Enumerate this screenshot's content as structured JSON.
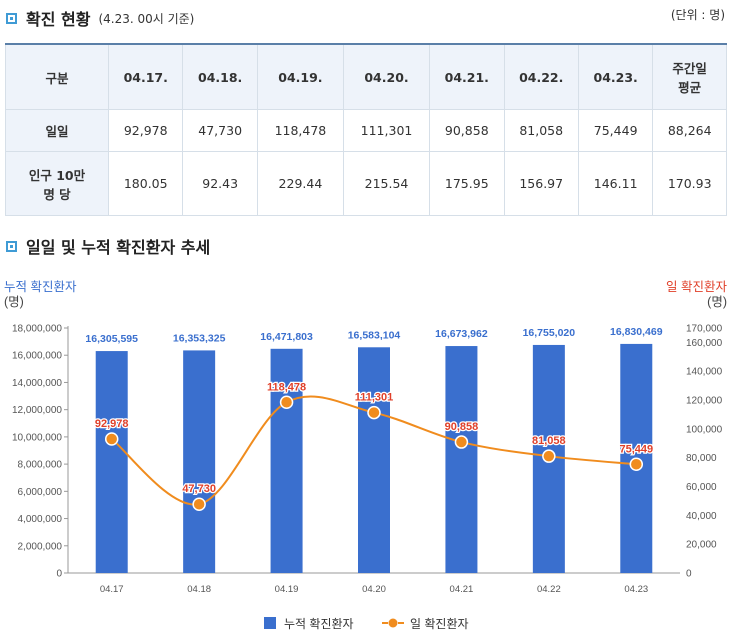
{
  "section1": {
    "title": "확진 현황",
    "subtitle": "(4.23. 00시 기준)",
    "unit": "(단위 : 명)"
  },
  "table": {
    "header": [
      "구분",
      "04.17.",
      "04.18.",
      "04.19.",
      "04.20.",
      "04.21.",
      "04.22.",
      "04.23.",
      "주간일\n평균"
    ],
    "rows": [
      {
        "label": "일일",
        "cells": [
          "92,978",
          "47,730",
          "118,478",
          "111,301",
          "90,858",
          "81,058",
          "75,449",
          "88,264"
        ]
      },
      {
        "label": "인구 10만\n명 당",
        "cells": [
          "180.05",
          "92.43",
          "229.44",
          "215.54",
          "175.95",
          "156.97",
          "146.11",
          "170.93"
        ]
      }
    ]
  },
  "section2": {
    "title": "일일 및 누적 확진환자 추세"
  },
  "colors": {
    "bar": "#3a6fce",
    "line": "#f08c1e",
    "bar_label": "#3a6fce",
    "line_label": "#e0402a",
    "left_axis_title": "#3a6fce",
    "right_axis_title": "#e0402a"
  },
  "chart_data": {
    "type": "bar+line",
    "categories": [
      "04.17",
      "04.18",
      "04.19",
      "04.20",
      "04.21",
      "04.22",
      "04.23"
    ],
    "series": [
      {
        "name": "누적 확진환자",
        "kind": "bar",
        "axis": "left",
        "values": [
          16305595,
          16353325,
          16471803,
          16583104,
          16673962,
          16755020,
          16830469
        ],
        "labels": [
          "16,305,595",
          "16,353,325",
          "16,471,803",
          "16,583,104",
          "16,673,962",
          "16,755,020",
          "16,830,469"
        ]
      },
      {
        "name": "일 확진환자",
        "kind": "line",
        "axis": "right",
        "smooth": true,
        "values": [
          92978,
          47730,
          118478,
          111301,
          90858,
          81058,
          75449
        ],
        "labels": [
          "92,978",
          "47,730",
          "118,478",
          "111,301",
          "90,858",
          "81,058",
          "75,449"
        ]
      }
    ],
    "left_axis": {
      "title": "누적 확진환자",
      "unit": "(명)",
      "min": 0,
      "max": 18000000,
      "ticks": [
        0,
        2000000,
        4000000,
        6000000,
        8000000,
        10000000,
        12000000,
        14000000,
        16000000,
        18000000
      ],
      "tick_labels": [
        "0",
        "2,000,000",
        "4,000,000",
        "6,000,000",
        "8,000,000",
        "10,000,000",
        "12,000,000",
        "14,000,000",
        "16,000,000",
        "18,000,000"
      ]
    },
    "right_axis": {
      "title": "일 확진환자",
      "unit": "(명)",
      "min": 0,
      "max": 170000,
      "ticks": [
        0,
        20000,
        40000,
        60000,
        80000,
        100000,
        120000,
        140000,
        160000,
        170000
      ],
      "tick_labels": [
        "0",
        "20,000",
        "40,000",
        "60,000",
        "80,000",
        "100,000",
        "120,000",
        "140,000",
        "160,000",
        "170,000"
      ]
    },
    "grid": false,
    "legend_position": "bottom"
  }
}
